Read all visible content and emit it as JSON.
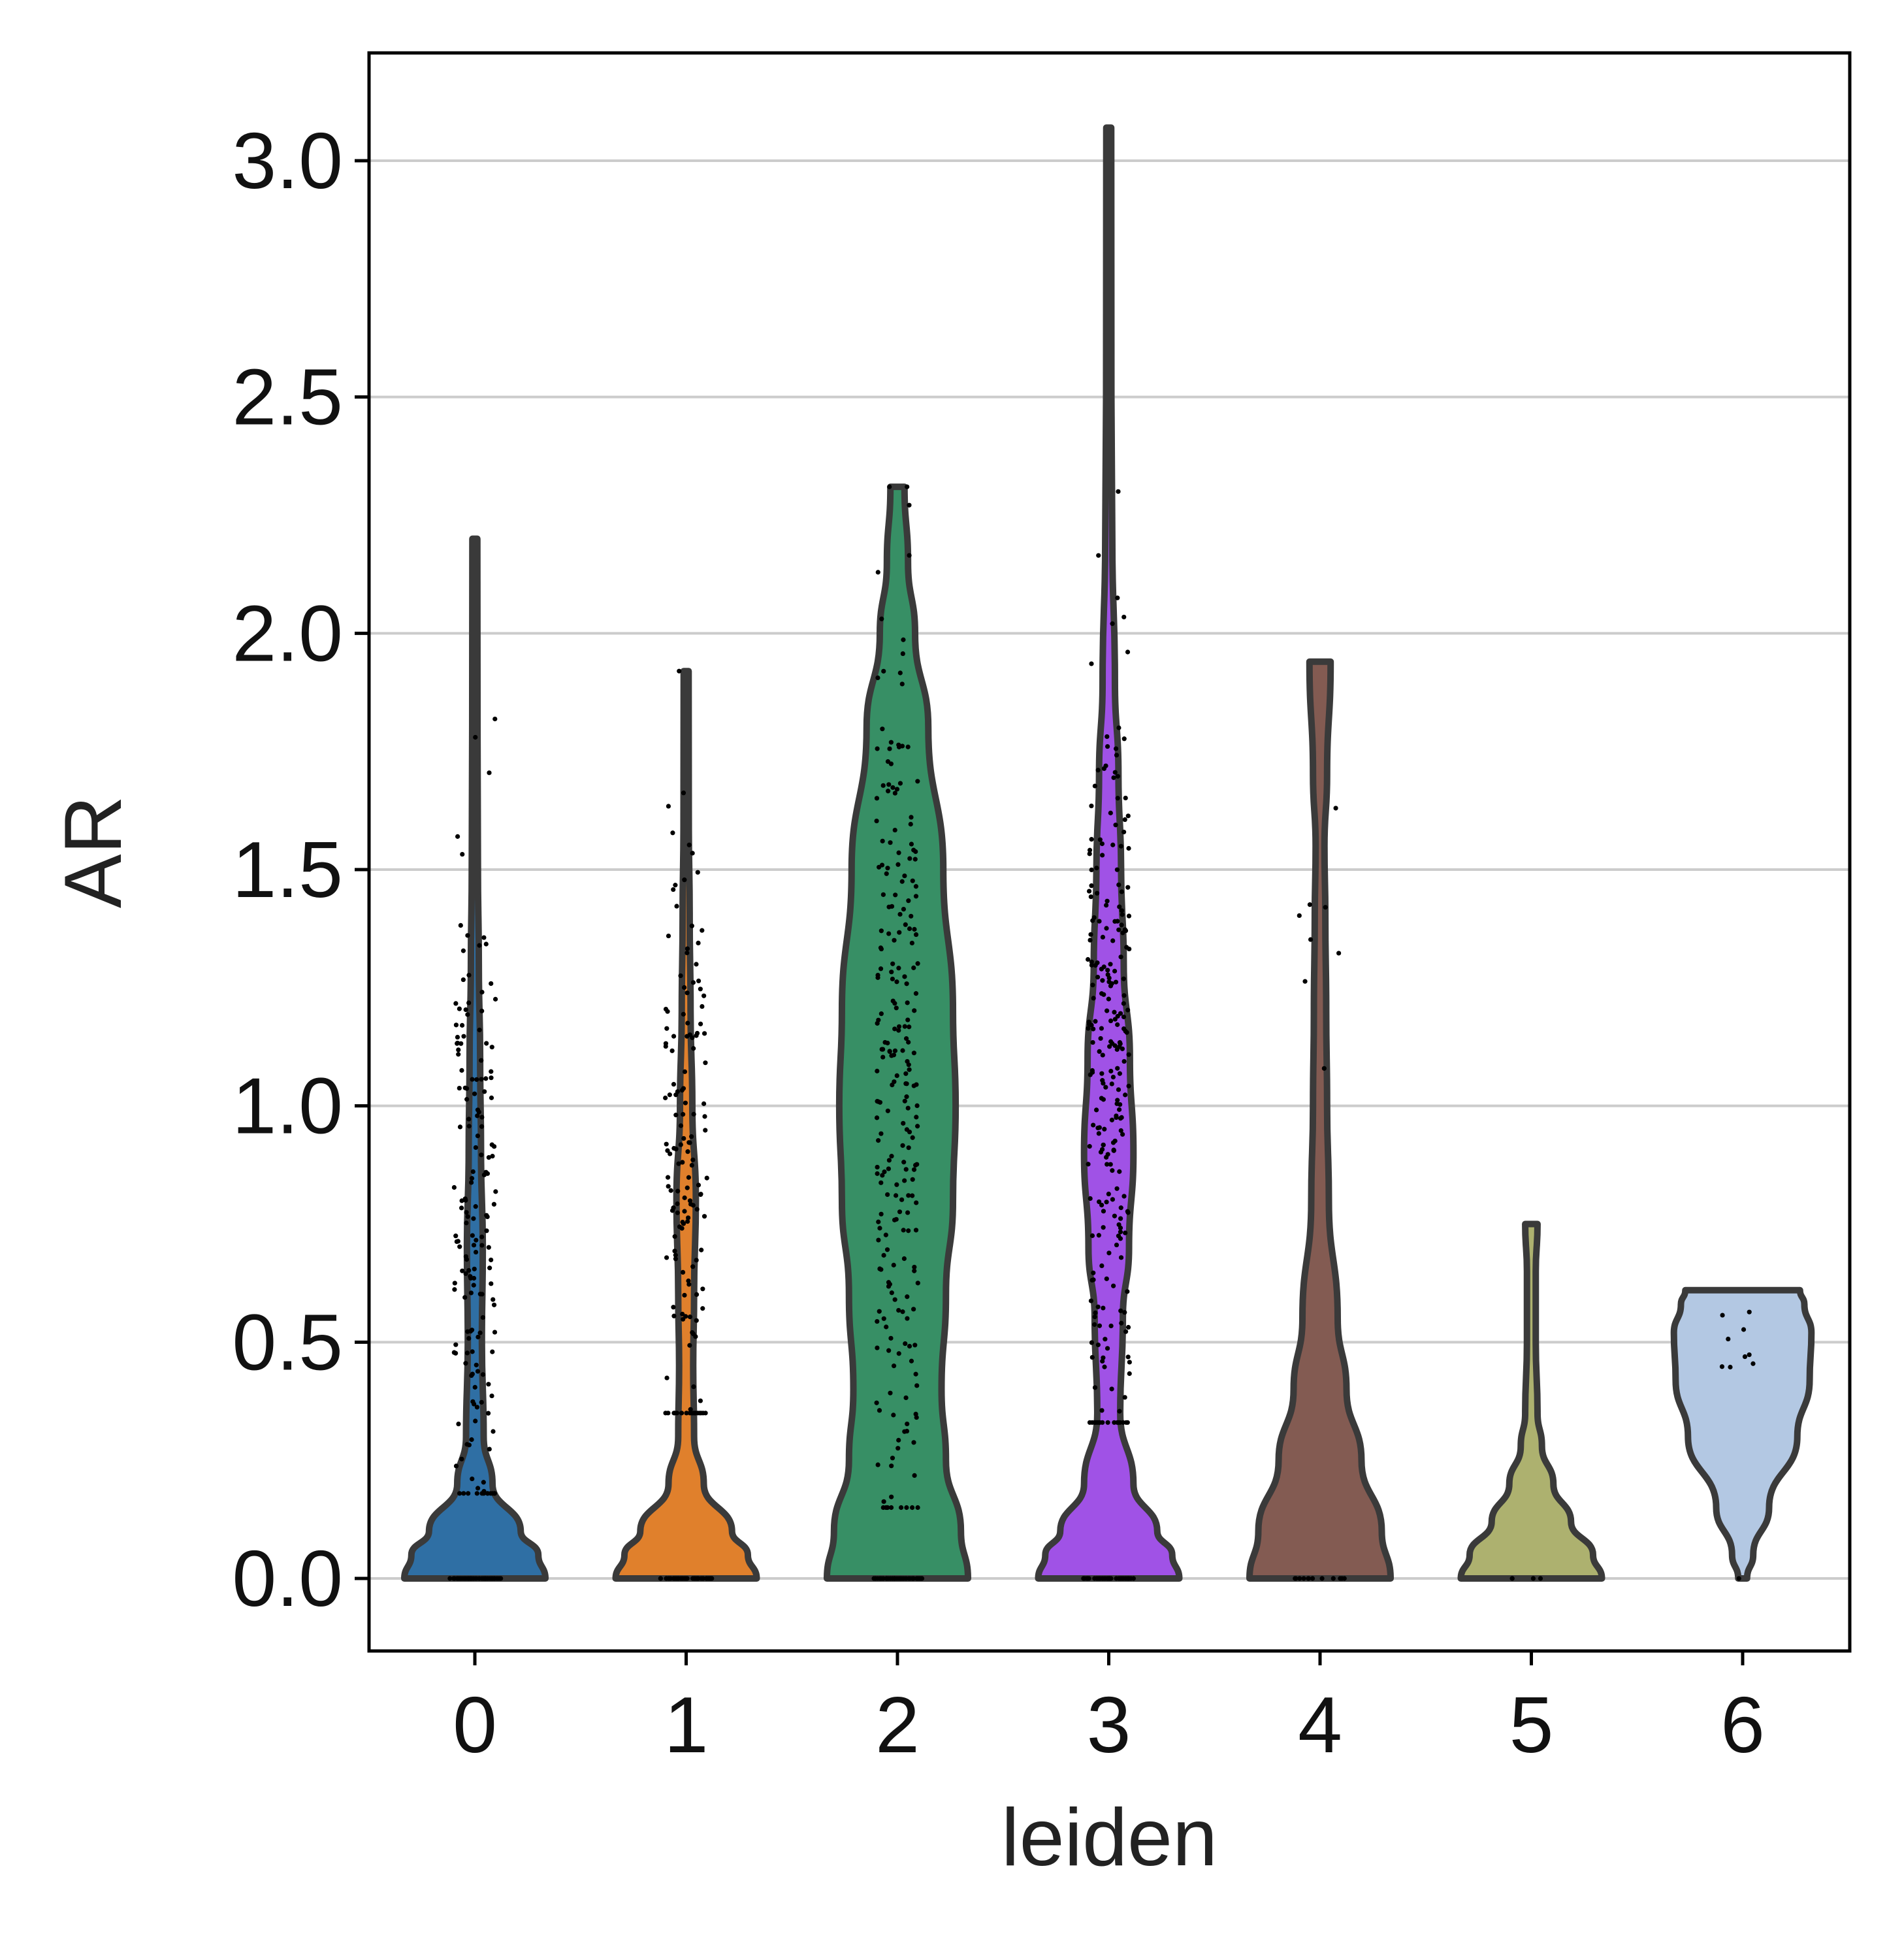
{
  "chart_data": {
    "type": "violin",
    "title": "",
    "xlabel": "leiden",
    "ylabel": "AR",
    "ylim": [
      -0.15,
      3.22
    ],
    "yticks": [
      "0.0",
      "0.5",
      "1.0",
      "1.5",
      "2.0",
      "2.5",
      "3.0"
    ],
    "grid": "horizontal",
    "categories": [
      "0",
      "1",
      "2",
      "3",
      "4",
      "5",
      "6"
    ],
    "colors": [
      "#2f6fa4",
      "#e0802c",
      "#378f65",
      "#a052e6",
      "#835b52",
      "#adb16f",
      "#b3c8e3"
    ],
    "outline_color": "#3a3a3a",
    "series": [
      {
        "category": "0",
        "max": 2.2,
        "profile": [
          [
            0.0,
            0.8
          ],
          [
            0.05,
            0.72
          ],
          [
            0.1,
            0.52
          ],
          [
            0.2,
            0.2
          ],
          [
            0.3,
            0.1
          ],
          [
            0.5,
            0.08
          ],
          [
            0.7,
            0.09
          ],
          [
            0.9,
            0.07
          ],
          [
            1.1,
            0.06
          ],
          [
            1.3,
            0.045
          ],
          [
            1.5,
            0.035
          ],
          [
            1.8,
            0.03
          ],
          [
            2.2,
            0.028
          ]
        ],
        "points": {
          "n_zero": 60,
          "nonzero_n": 170,
          "nonzero_range": [
            0.18,
            2.0
          ],
          "nonzero_center": 0.75
        }
      },
      {
        "category": "1",
        "max": 1.92,
        "profile": [
          [
            0.0,
            0.8
          ],
          [
            0.05,
            0.7
          ],
          [
            0.1,
            0.52
          ],
          [
            0.2,
            0.2
          ],
          [
            0.3,
            0.09
          ],
          [
            0.45,
            0.08
          ],
          [
            0.6,
            0.09
          ],
          [
            0.8,
            0.11
          ],
          [
            1.0,
            0.07
          ],
          [
            1.2,
            0.05
          ],
          [
            1.4,
            0.04
          ],
          [
            1.6,
            0.03
          ],
          [
            1.92,
            0.028
          ]
        ],
        "points": {
          "n_zero": 50,
          "nonzero_n": 150,
          "nonzero_range": [
            0.35,
            1.92
          ],
          "nonzero_center": 0.85
        }
      },
      {
        "category": "2",
        "max": 2.31,
        "profile": [
          [
            0.0,
            0.8
          ],
          [
            0.1,
            0.72
          ],
          [
            0.25,
            0.55
          ],
          [
            0.4,
            0.5
          ],
          [
            0.6,
            0.55
          ],
          [
            0.8,
            0.63
          ],
          [
            1.0,
            0.66
          ],
          [
            1.2,
            0.63
          ],
          [
            1.5,
            0.52
          ],
          [
            1.8,
            0.35
          ],
          [
            2.0,
            0.2
          ],
          [
            2.15,
            0.12
          ],
          [
            2.31,
            0.08
          ]
        ],
        "points": {
          "n_zero": 60,
          "nonzero_n": 240,
          "nonzero_range": [
            0.15,
            2.31
          ],
          "nonzero_center": 1.05
        }
      },
      {
        "category": "3",
        "max": 3.07,
        "profile": [
          [
            0.0,
            0.8
          ],
          [
            0.05,
            0.72
          ],
          [
            0.1,
            0.55
          ],
          [
            0.2,
            0.28
          ],
          [
            0.35,
            0.13
          ],
          [
            0.55,
            0.16
          ],
          [
            0.7,
            0.23
          ],
          [
            0.9,
            0.28
          ],
          [
            1.1,
            0.24
          ],
          [
            1.3,
            0.17
          ],
          [
            1.5,
            0.14
          ],
          [
            1.7,
            0.11
          ],
          [
            1.9,
            0.07
          ],
          [
            2.2,
            0.04
          ],
          [
            2.5,
            0.03
          ],
          [
            3.07,
            0.028
          ]
        ],
        "points": {
          "n_zero": 50,
          "nonzero_n": 260,
          "nonzero_range": [
            0.33,
            2.3
          ],
          "nonzero_center": 1.05
        }
      },
      {
        "category": "4",
        "max": 1.94,
        "profile": [
          [
            0.0,
            0.8
          ],
          [
            0.1,
            0.7
          ],
          [
            0.25,
            0.47
          ],
          [
            0.4,
            0.3
          ],
          [
            0.55,
            0.2
          ],
          [
            0.8,
            0.1
          ],
          [
            1.0,
            0.08
          ],
          [
            1.2,
            0.07
          ],
          [
            1.4,
            0.06
          ],
          [
            1.55,
            0.05
          ],
          [
            1.7,
            0.08
          ],
          [
            1.94,
            0.12
          ]
        ],
        "points": {
          "n_zero": 12,
          "nonzero_n": 8,
          "nonzero_range": [
            0.56,
            1.63
          ],
          "nonzero_center": 1.3
        }
      },
      {
        "category": "5",
        "max": 0.75,
        "profile": [
          [
            0.0,
            0.8
          ],
          [
            0.05,
            0.7
          ],
          [
            0.12,
            0.45
          ],
          [
            0.2,
            0.25
          ],
          [
            0.28,
            0.12
          ],
          [
            0.35,
            0.07
          ],
          [
            0.5,
            0.05
          ],
          [
            0.65,
            0.05
          ],
          [
            0.75,
            0.07
          ]
        ],
        "points": {
          "n_zero": 4,
          "nonzero_n": 0,
          "nonzero_range": [
            0.0,
            0.0
          ],
          "nonzero_center": 0.0
        }
      },
      {
        "category": "6",
        "max": 0.61,
        "profile": [
          [
            0.0,
            0.05
          ],
          [
            0.05,
            0.12
          ],
          [
            0.15,
            0.3
          ],
          [
            0.3,
            0.62
          ],
          [
            0.42,
            0.76
          ],
          [
            0.52,
            0.78
          ],
          [
            0.58,
            0.7
          ],
          [
            0.61,
            0.65
          ]
        ],
        "points": {
          "n_zero": 1,
          "nonzero_n": 9,
          "nonzero_range": [
            0.23,
            0.61
          ],
          "nonzero_center": 0.45
        }
      }
    ]
  }
}
